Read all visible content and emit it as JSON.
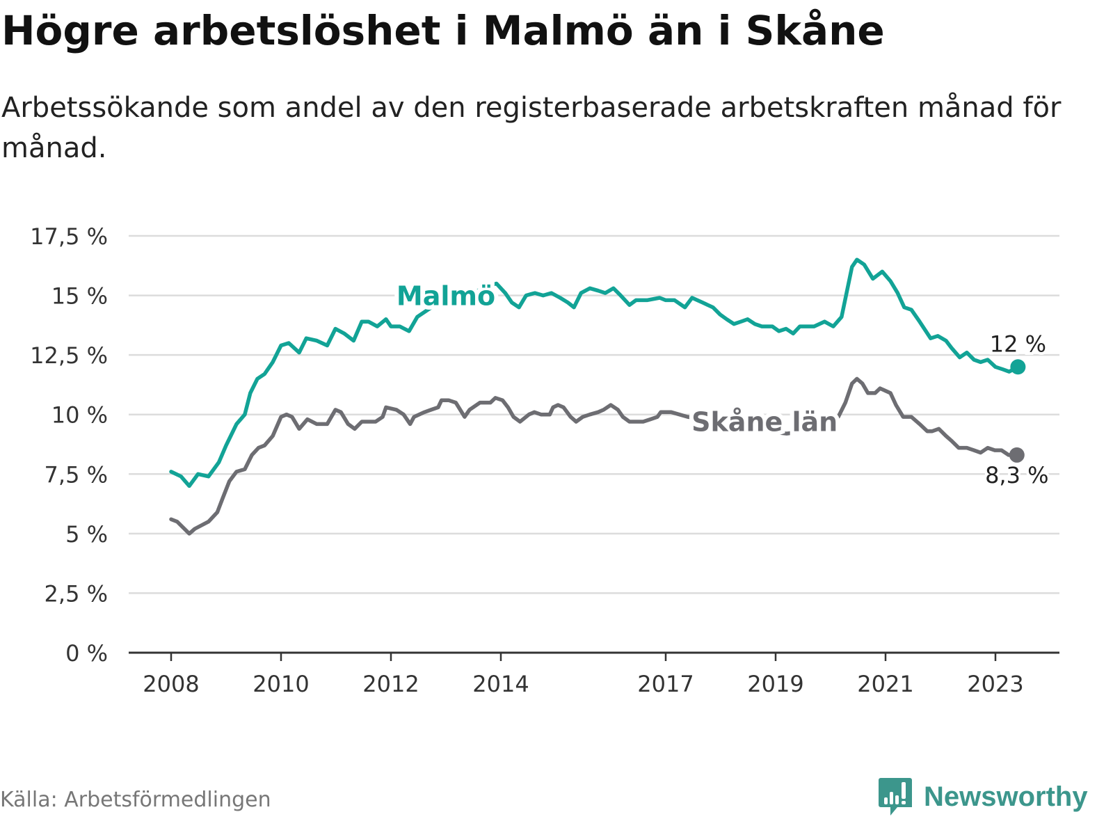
{
  "title": "Högre arbetslöshet i Malmö än i Skåne",
  "subtitle": "Arbetssökande som andel av den registerbaserade arbetskraften månad för månad.",
  "source": "Källa: Arbetsförmedlingen",
  "logo": {
    "text": "Newsworthy",
    "icon": "bar-chart-exclamation-icon",
    "color": "#3c968c"
  },
  "chart_data": {
    "type": "line",
    "title": "Högre arbetslöshet i Malmö än i Skåne",
    "xlabel": "",
    "ylabel": "",
    "ylim": [
      0,
      17.5
    ],
    "xlim": [
      2006.9,
      2024.2
    ],
    "grid": true,
    "yticks": [
      0,
      2.5,
      5,
      7.5,
      10,
      12.5,
      15,
      17.5
    ],
    "ytick_labels": [
      "0 %",
      "2,5 %",
      "5 %",
      "7,5 %",
      "10 %",
      "12,5 %",
      "15 %",
      "17,5 %"
    ],
    "xticks": [
      2008,
      2010,
      2012,
      2014,
      2017,
      2019,
      2021,
      2023
    ],
    "xtick_labels": [
      "2008",
      "2010",
      "2012",
      "2014",
      "2017",
      "2019",
      "2021",
      "2023"
    ],
    "series": [
      {
        "name": "Malmö",
        "color": "#12a396",
        "end_label": "12 %",
        "label_pos": [
          2013.0,
          14.6
        ],
        "x": [
          2008.0,
          2008.18,
          2008.33,
          2008.49,
          2008.68,
          2008.87,
          2009.0,
          2009.19,
          2009.34,
          2009.44,
          2009.57,
          2009.7,
          2009.85,
          2010.0,
          2010.14,
          2010.33,
          2010.46,
          2010.65,
          2010.84,
          2010.99,
          2011.15,
          2011.32,
          2011.47,
          2011.59,
          2011.75,
          2011.91,
          2012.0,
          2012.16,
          2012.33,
          2012.48,
          2012.8,
          2013.2,
          2013.58,
          2013.77,
          2013.92,
          2014.08,
          2014.2,
          2014.33,
          2014.46,
          2014.62,
          2014.77,
          2014.92,
          2015.08,
          2015.22,
          2015.33,
          2015.46,
          2015.62,
          2015.77,
          2015.9,
          2016.05,
          2016.18,
          2016.34,
          2016.46,
          2016.66,
          2016.89,
          2017.0,
          2017.16,
          2017.35,
          2017.48,
          2017.67,
          2017.86,
          2017.99,
          2018.11,
          2018.24,
          2018.37,
          2018.49,
          2018.62,
          2018.75,
          2018.94,
          2019.06,
          2019.19,
          2019.32,
          2019.44,
          2019.57,
          2019.7,
          2019.89,
          2020.05,
          2020.2,
          2020.39,
          2020.48,
          2020.61,
          2020.77,
          2020.94,
          2021.09,
          2021.22,
          2021.34,
          2021.47,
          2021.62,
          2021.82,
          2021.95,
          2022.1,
          2022.2,
          2022.35,
          2022.48,
          2022.61,
          2022.73,
          2022.86,
          2023.0,
          2023.13,
          2023.25,
          2023.41
        ],
        "values": [
          7.6,
          7.4,
          7.0,
          7.5,
          7.4,
          8.0,
          8.7,
          9.6,
          10.0,
          10.9,
          11.5,
          11.7,
          12.2,
          12.9,
          13.0,
          12.6,
          13.2,
          13.1,
          12.9,
          13.6,
          13.4,
          13.1,
          13.9,
          13.9,
          13.7,
          14.0,
          13.7,
          13.7,
          13.5,
          14.1,
          14.6,
          14.9,
          15.2,
          15.4,
          15.5,
          15.1,
          14.7,
          14.5,
          15.0,
          15.1,
          15.0,
          15.1,
          14.9,
          14.7,
          14.5,
          15.1,
          15.3,
          15.2,
          15.1,
          15.3,
          15.0,
          14.6,
          14.8,
          14.8,
          14.9,
          14.8,
          14.8,
          14.5,
          14.9,
          14.7,
          14.5,
          14.2,
          14.0,
          13.8,
          13.9,
          14.0,
          13.8,
          13.7,
          13.7,
          13.5,
          13.6,
          13.4,
          13.7,
          13.7,
          13.7,
          13.9,
          13.7,
          14.1,
          16.2,
          16.5,
          16.3,
          15.7,
          16.0,
          15.6,
          15.1,
          14.5,
          14.4,
          13.9,
          13.2,
          13.3,
          13.1,
          12.8,
          12.4,
          12.6,
          12.3,
          12.2,
          12.3,
          12.0,
          11.9,
          11.8,
          12.0
        ]
      },
      {
        "name": "Skåne län",
        "color": "#6d6d72",
        "end_label": "8,3 %",
        "label_pos": [
          2018.8,
          9.3
        ],
        "x": [
          2008.0,
          2008.11,
          2008.33,
          2008.43,
          2008.68,
          2008.84,
          2008.94,
          2009.06,
          2009.19,
          2009.34,
          2009.47,
          2009.59,
          2009.7,
          2009.85,
          2010.0,
          2010.1,
          2010.2,
          2010.33,
          2010.48,
          2010.65,
          2010.84,
          2010.99,
          2011.09,
          2011.22,
          2011.34,
          2011.47,
          2011.72,
          2011.85,
          2011.91,
          2012.1,
          2012.23,
          2012.35,
          2012.42,
          2012.61,
          2012.73,
          2012.86,
          2012.92,
          2013.05,
          2013.18,
          2013.34,
          2013.43,
          2013.62,
          2013.81,
          2013.9,
          2014.03,
          2014.13,
          2014.23,
          2014.35,
          2014.51,
          2014.61,
          2014.73,
          2014.89,
          2014.95,
          2015.04,
          2015.14,
          2015.27,
          2015.37,
          2015.49,
          2015.62,
          2015.77,
          2015.87,
          2016.0,
          2016.13,
          2016.22,
          2016.34,
          2016.51,
          2016.59,
          2016.72,
          2016.85,
          2016.91,
          2017.1,
          2017.4,
          2017.7,
          2018.0,
          2018.4,
          2018.8,
          2019.2,
          2019.57,
          2019.76,
          2019.89,
          2020.05,
          2020.14,
          2020.27,
          2020.39,
          2020.48,
          2020.58,
          2020.68,
          2020.81,
          2020.9,
          2021.09,
          2021.19,
          2021.32,
          2021.47,
          2021.62,
          2021.76,
          2021.85,
          2021.97,
          2022.1,
          2022.2,
          2022.33,
          2022.48,
          2022.61,
          2022.73,
          2022.86,
          2022.99,
          2023.11,
          2023.24,
          2023.39
        ],
        "values": [
          5.6,
          5.5,
          5.0,
          5.2,
          5.5,
          5.9,
          6.5,
          7.2,
          7.6,
          7.7,
          8.3,
          8.6,
          8.7,
          9.1,
          9.9,
          10.0,
          9.9,
          9.4,
          9.8,
          9.6,
          9.6,
          10.2,
          10.1,
          9.6,
          9.4,
          9.7,
          9.7,
          9.9,
          10.3,
          10.2,
          10.0,
          9.6,
          9.9,
          10.1,
          10.2,
          10.3,
          10.6,
          10.6,
          10.5,
          9.9,
          10.2,
          10.5,
          10.5,
          10.7,
          10.6,
          10.3,
          9.9,
          9.7,
          10.0,
          10.1,
          10.0,
          10.0,
          10.3,
          10.4,
          10.3,
          9.9,
          9.7,
          9.9,
          10.0,
          10.1,
          10.2,
          10.4,
          10.2,
          9.9,
          9.7,
          9.7,
          9.7,
          9.8,
          9.9,
          10.1,
          10.1,
          9.9,
          9.8,
          9.5,
          9.4,
          9.3,
          9.2,
          9.3,
          9.4,
          9.8,
          9.7,
          9.9,
          10.5,
          11.3,
          11.5,
          11.3,
          10.9,
          10.9,
          11.1,
          10.9,
          10.4,
          9.9,
          9.9,
          9.6,
          9.3,
          9.3,
          9.4,
          9.1,
          8.9,
          8.6,
          8.6,
          8.5,
          8.4,
          8.6,
          8.5,
          8.5,
          8.3,
          8.3
        ]
      }
    ]
  }
}
